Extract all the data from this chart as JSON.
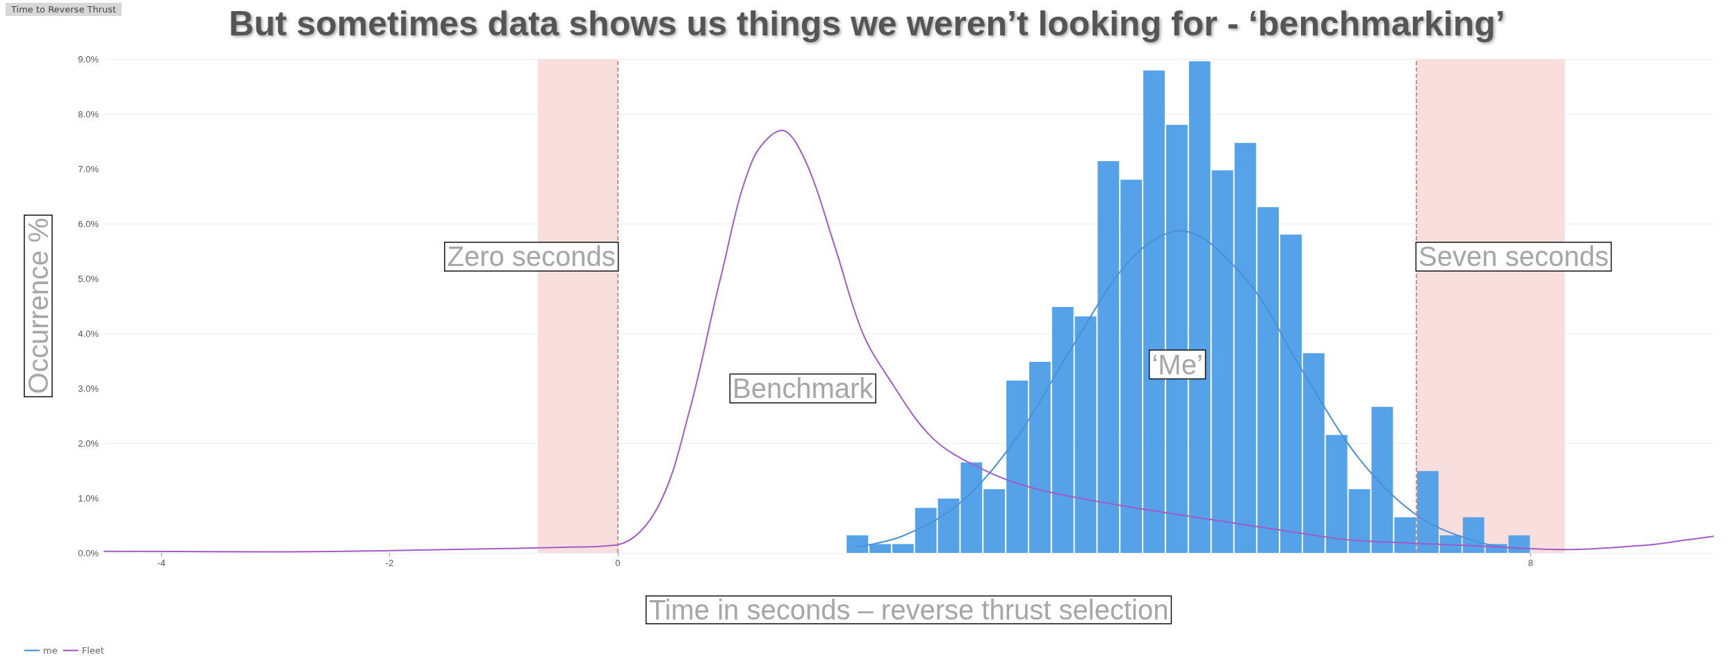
{
  "chart_data": {
    "type": "histogram",
    "title": "But sometimes data shows us things we weren’t looking for - ‘benchmarking’",
    "subtitle": "Time to Reverse Thrust",
    "xlabel": "Time in seconds – reverse thrust selection",
    "ylabel": "Occurrence %",
    "bins": [
      2.0,
      2.2,
      2.4,
      2.6,
      2.8,
      3.0,
      3.2,
      3.4,
      3.6,
      3.8,
      4.0,
      4.2,
      4.4,
      4.6,
      4.8,
      5.0,
      5.2,
      5.4,
      5.6,
      5.8,
      6.0,
      6.2,
      6.4,
      6.6,
      6.8,
      7.0,
      7.2,
      7.4,
      7.6,
      7.8,
      8.0
    ],
    "values": [
      0.32,
      0.16,
      0.16,
      0.82,
      0.99,
      1.65,
      1.16,
      3.14,
      3.48,
      4.48,
      4.31,
      7.14,
      6.8,
      8.79,
      7.8,
      8.96,
      6.97,
      7.47,
      6.3,
      5.8,
      3.64,
      2.15,
      1.16,
      2.66,
      0.65,
      1.49,
      0.32,
      0.65,
      0.16,
      0.32
    ],
    "color": "#55a2e8",
    "series": [
      {
        "type": "line",
        "name": "me",
        "color": "#4a90d9",
        "x": [
          2.1,
          2.5,
          3.0,
          3.5,
          4.0,
          4.5,
          4.93,
          5.5,
          6.0,
          6.5,
          7.0,
          7.5,
          7.9
        ],
        "values": [
          0.11,
          0.31,
          0.91,
          2.11,
          3.81,
          5.36,
          5.87,
          5.0,
          3.32,
          1.71,
          0.69,
          0.22,
          0.07
        ]
      },
      {
        "type": "line",
        "name": "Fleet",
        "color": "#a25cc8",
        "x": [
          -4.5,
          -3,
          -2,
          -1,
          -0.5,
          0,
          0.35,
          0.63,
          0.9,
          1.18,
          1.44,
          1.65,
          1.9,
          2.14,
          2.36,
          2.76,
          3.2,
          3.64,
          4.31,
          5.19,
          6.08,
          6.44,
          7.41,
          8.3,
          9.01,
          9.38,
          9.6
        ],
        "values": [
          0.03,
          0.02,
          0.04,
          0.08,
          0.1,
          0.15,
          0.83,
          2.6,
          5.0,
          7.15,
          7.7,
          7.12,
          5.6,
          4.04,
          3.23,
          2.09,
          1.52,
          1.18,
          0.9,
          0.61,
          0.33,
          0.23,
          0.14,
          0.06,
          0.14,
          0.24,
          0.3
        ]
      }
    ],
    "xlim": [
      -4.5,
      9.6
    ],
    "xticks": [
      -4,
      -2,
      0,
      8
    ],
    "ylim": [
      0,
      9
    ],
    "yticks": [
      {
        "value": 0,
        "label": "0.0%"
      },
      {
        "value": 1,
        "label": "1.0%"
      },
      {
        "value": 2,
        "label": "2.0%"
      },
      {
        "value": 3,
        "label": "3.0%"
      },
      {
        "value": 4,
        "label": "4.0%"
      },
      {
        "value": 5,
        "label": "5.0%"
      },
      {
        "value": 6,
        "label": "6.0%"
      },
      {
        "value": 7,
        "label": "7.0%"
      },
      {
        "value": 8,
        "label": "8.0%"
      },
      {
        "value": 9,
        "label": "9.0%"
      }
    ],
    "ref_lines": [
      {
        "axis": "x",
        "value": 0,
        "label": "Zero seconds",
        "color": "#c07070",
        "line_style": "dashed"
      },
      {
        "axis": "x",
        "value": 7,
        "label": "Seven seconds",
        "color": "#c07070",
        "line_style": "dashed"
      }
    ],
    "bands": [
      {
        "axis": "x",
        "from": -0.7,
        "to": 0,
        "color": "#f9dede"
      },
      {
        "axis": "x",
        "from": 7,
        "to": 8.3,
        "color": "#f9dede"
      }
    ],
    "annotations": [
      "Benchmark",
      "‘Me’"
    ],
    "grid": "y",
    "legend": "bottom left",
    "marker": "none",
    "line_style": "solid"
  }
}
